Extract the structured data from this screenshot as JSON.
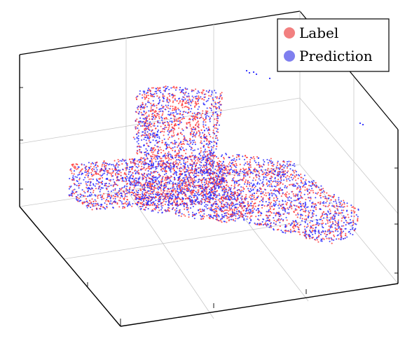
{
  "chart_data": {
    "type": "scatter",
    "projection": "3d",
    "title": "",
    "xlabel": "",
    "ylabel": "",
    "zlabel": "",
    "grid": true,
    "tick_labels": false,
    "legend_position": "top-right",
    "series": [
      {
        "name": "Label",
        "color": "#ff3b3b",
        "legend_color": "#f28080",
        "marker": "dot"
      },
      {
        "name": "Prediction",
        "color": "#2828ff",
        "legend_color": "#7f7fef",
        "marker": "dot"
      }
    ],
    "object": "point cloud of a chair-like shape (seat slab with back rest and an extended front arm)"
  }
}
